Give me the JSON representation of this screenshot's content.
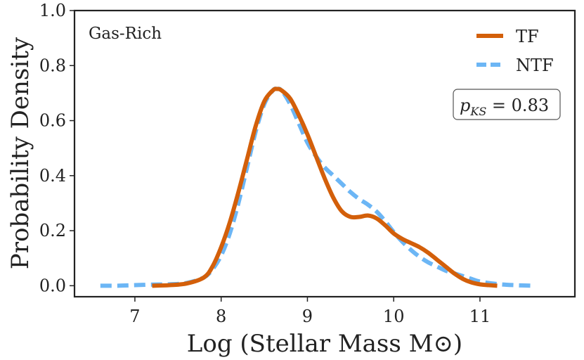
{
  "chart_data": {
    "type": "line",
    "title": "",
    "xlabel": "Log (Stellar Mass M⊙)",
    "ylabel": "Probability Density",
    "xlim": [
      6.3,
      12.1
    ],
    "ylim": [
      -0.04,
      1.0
    ],
    "xticks": [
      7,
      8,
      9,
      10,
      11
    ],
    "yticks": [
      0.0,
      0.2,
      0.4,
      0.6,
      0.8,
      1.0
    ],
    "xtick_labels": [
      "7",
      "8",
      "9",
      "10",
      "11"
    ],
    "ytick_labels": [
      "0.0",
      "0.2",
      "0.4",
      "0.6",
      "0.8",
      "1.0"
    ],
    "grid": false,
    "legend_position": "top-right",
    "annotation": "Gas-Rich",
    "stat_box": {
      "text": "p_KS = 0.83",
      "label": "p",
      "subscript": "KS",
      "rel": " = 0.83"
    },
    "series": [
      {
        "name": "TF",
        "color": "#d35f0a",
        "style": "solid",
        "x": [
          7.2,
          7.4,
          7.6,
          7.8,
          7.9,
          8.0,
          8.1,
          8.2,
          8.3,
          8.4,
          8.5,
          8.6,
          8.65,
          8.7,
          8.8,
          8.9,
          9.0,
          9.1,
          9.2,
          9.3,
          9.4,
          9.5,
          9.6,
          9.7,
          9.8,
          9.9,
          10.0,
          10.1,
          10.2,
          10.3,
          10.4,
          10.5,
          10.6,
          10.7,
          10.8,
          10.9,
          11.0,
          11.1,
          11.2
        ],
        "y": [
          0.0,
          0.002,
          0.008,
          0.03,
          0.07,
          0.14,
          0.23,
          0.34,
          0.46,
          0.58,
          0.67,
          0.71,
          0.715,
          0.71,
          0.68,
          0.62,
          0.55,
          0.47,
          0.39,
          0.32,
          0.27,
          0.25,
          0.25,
          0.255,
          0.245,
          0.22,
          0.19,
          0.17,
          0.155,
          0.14,
          0.12,
          0.095,
          0.07,
          0.045,
          0.025,
          0.012,
          0.005,
          0.002,
          0.0
        ]
      },
      {
        "name": "NTF",
        "color": "#6cb6f5",
        "style": "dashed",
        "x": [
          6.6,
          6.8,
          7.0,
          7.2,
          7.4,
          7.6,
          7.8,
          7.9,
          8.0,
          8.1,
          8.2,
          8.3,
          8.4,
          8.5,
          8.6,
          8.65,
          8.7,
          8.8,
          8.9,
          9.0,
          9.1,
          9.2,
          9.3,
          9.4,
          9.5,
          9.6,
          9.7,
          9.8,
          9.9,
          10.0,
          10.1,
          10.2,
          10.3,
          10.4,
          10.5,
          10.6,
          10.7,
          10.8,
          10.9,
          11.0,
          11.2,
          11.4,
          11.6
        ],
        "y": [
          0.0,
          0.0,
          0.002,
          0.004,
          0.005,
          0.01,
          0.03,
          0.06,
          0.11,
          0.19,
          0.3,
          0.43,
          0.56,
          0.66,
          0.71,
          0.715,
          0.71,
          0.66,
          0.59,
          0.52,
          0.47,
          0.43,
          0.4,
          0.37,
          0.34,
          0.315,
          0.295,
          0.27,
          0.235,
          0.195,
          0.16,
          0.13,
          0.105,
          0.085,
          0.07,
          0.055,
          0.045,
          0.035,
          0.025,
          0.015,
          0.006,
          0.002,
          0.0
        ]
      }
    ]
  }
}
